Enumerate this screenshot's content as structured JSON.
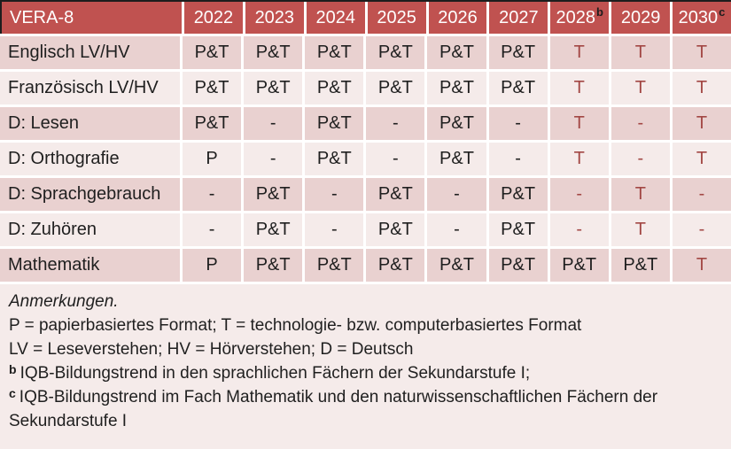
{
  "colors": {
    "header_bg": "#C05250",
    "header_text": "#FFFFFF",
    "row_dark": "#E9D1D0",
    "row_light": "#F5EBEA",
    "notes_bg": "#F5EBEA",
    "accent_text": "#A24744",
    "body_text": "#1F1F1F",
    "border_dark": "#1D1D1D"
  },
  "table": {
    "title": "VERA-8",
    "columns": [
      {
        "label": "2022",
        "sup": ""
      },
      {
        "label": "2023",
        "sup": ""
      },
      {
        "label": "2024",
        "sup": ""
      },
      {
        "label": "2025",
        "sup": ""
      },
      {
        "label": "2026",
        "sup": ""
      },
      {
        "label": "2027",
        "sup": ""
      },
      {
        "label": "2028",
        "sup": "b"
      },
      {
        "label": "2029",
        "sup": ""
      },
      {
        "label": "2030",
        "sup": "c"
      }
    ],
    "rows": [
      {
        "label": "Englisch LV/HV",
        "cells": [
          {
            "text": "P&T"
          },
          {
            "text": "P&T"
          },
          {
            "text": "P&T"
          },
          {
            "text": "P&T"
          },
          {
            "text": "P&T"
          },
          {
            "text": "P&T"
          },
          {
            "text": "T",
            "accent": true
          },
          {
            "text": "T",
            "accent": true
          },
          {
            "text": "T",
            "accent": true
          }
        ]
      },
      {
        "label": "Französisch LV/HV",
        "cells": [
          {
            "text": "P&T"
          },
          {
            "text": "P&T"
          },
          {
            "text": "P&T"
          },
          {
            "text": "P&T"
          },
          {
            "text": "P&T"
          },
          {
            "text": "P&T"
          },
          {
            "text": "T",
            "accent": true
          },
          {
            "text": "T",
            "accent": true
          },
          {
            "text": "T",
            "accent": true
          }
        ]
      },
      {
        "label": "D: Lesen",
        "cells": [
          {
            "text": "P&T"
          },
          {
            "text": "-"
          },
          {
            "text": "P&T"
          },
          {
            "text": "-"
          },
          {
            "text": "P&T"
          },
          {
            "text": "-"
          },
          {
            "text": "T",
            "accent": true
          },
          {
            "text": "-",
            "accent": true
          },
          {
            "text": "T",
            "accent": true
          }
        ]
      },
      {
        "label": "D: Orthografie",
        "cells": [
          {
            "text": "P"
          },
          {
            "text": "-"
          },
          {
            "text": "P&T"
          },
          {
            "text": "-"
          },
          {
            "text": "P&T"
          },
          {
            "text": "-"
          },
          {
            "text": "T",
            "accent": true
          },
          {
            "text": "-",
            "accent": true
          },
          {
            "text": "T",
            "accent": true
          }
        ]
      },
      {
        "label": "D: Sprachgebrauch",
        "cells": [
          {
            "text": "-"
          },
          {
            "text": "P&T"
          },
          {
            "text": "-"
          },
          {
            "text": "P&T"
          },
          {
            "text": "-"
          },
          {
            "text": "P&T"
          },
          {
            "text": "-",
            "accent": true
          },
          {
            "text": "T",
            "accent": true
          },
          {
            "text": "-",
            "accent": true
          }
        ]
      },
      {
        "label": "D: Zuhören",
        "cells": [
          {
            "text": "-"
          },
          {
            "text": "P&T"
          },
          {
            "text": "-"
          },
          {
            "text": "P&T"
          },
          {
            "text": "-"
          },
          {
            "text": "P&T"
          },
          {
            "text": "-",
            "accent": true
          },
          {
            "text": "T",
            "accent": true
          },
          {
            "text": "-",
            "accent": true
          }
        ]
      },
      {
        "label": "Mathematik",
        "cells": [
          {
            "text": "P"
          },
          {
            "text": "P&T"
          },
          {
            "text": "P&T"
          },
          {
            "text": "P&T"
          },
          {
            "text": "P&T"
          },
          {
            "text": "P&T"
          },
          {
            "text": "P&T"
          },
          {
            "text": "P&T"
          },
          {
            "text": "T",
            "accent": true
          }
        ]
      }
    ]
  },
  "notes": {
    "heading": "Anmerkungen.",
    "lines": [
      {
        "sup": "",
        "text": "P = papierbasiertes Format; T = technologie- bzw. computerbasiertes Format"
      },
      {
        "sup": "",
        "text": "LV = Leseverstehen; HV = Hörverstehen; D = Deutsch"
      },
      {
        "sup": "b",
        "text": "IQB-Bildungstrend in den sprachlichen Fächern der Sekundarstufe I;"
      },
      {
        "sup": "c",
        "text": "IQB-Bildungstrend im Fach Mathematik und den naturwissenschaftlichen Fächern der Sekundarstufe I"
      }
    ]
  }
}
